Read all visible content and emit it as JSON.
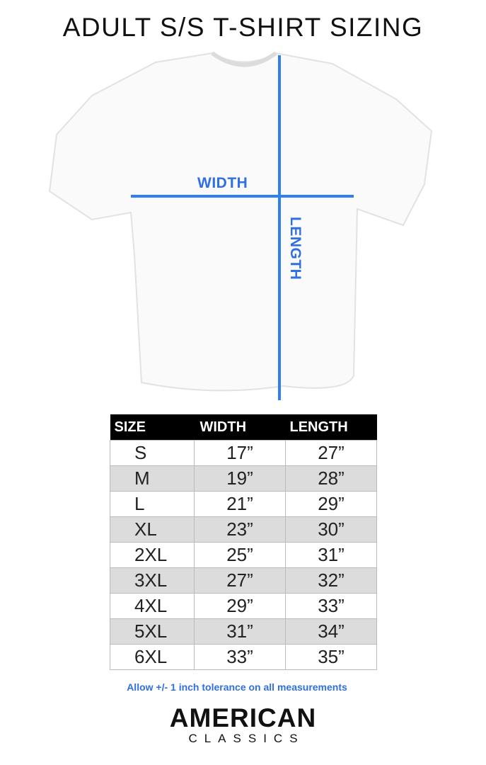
{
  "title": "ADULT S/S T-SHIRT SIZING",
  "diagram": {
    "width_label": "WIDTH",
    "length_label": "LENGTH",
    "line_color": "#2f7ff0",
    "label_color": "#2f6fe4"
  },
  "table": {
    "headers": [
      "SIZE",
      "WIDTH",
      "LENGTH"
    ],
    "rows": [
      [
        "S",
        "17”",
        "27”"
      ],
      [
        "M",
        "19”",
        "28”"
      ],
      [
        "L",
        "21”",
        "29”"
      ],
      [
        "XL",
        "23”",
        "30”"
      ],
      [
        "2XL",
        "25”",
        "31”"
      ],
      [
        "3XL",
        "27”",
        "32”"
      ],
      [
        "4XL",
        "29”",
        "33”"
      ],
      [
        "5XL",
        "31”",
        "34”"
      ],
      [
        "6XL",
        "33”",
        "35”"
      ]
    ]
  },
  "note": "Allow +/- 1 inch tolerance on all measurements",
  "logo": {
    "line1": "AMERICAN",
    "line2": "CLASSICS"
  }
}
